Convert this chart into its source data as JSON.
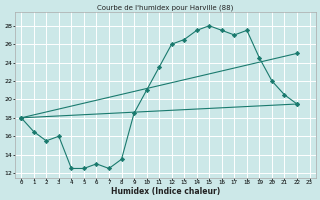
{
  "title": "Courbe de l'humidex pour Harville (88)",
  "xlabel": "Humidex (Indice chaleur)",
  "bg_color": "#cce8e8",
  "grid_color": "#ffffff",
  "line_color": "#1a7a6e",
  "xlim": [
    -0.5,
    23.5
  ],
  "ylim": [
    11.5,
    29.5
  ],
  "xticks": [
    0,
    1,
    2,
    3,
    4,
    5,
    6,
    7,
    8,
    9,
    10,
    11,
    12,
    13,
    14,
    15,
    16,
    17,
    18,
    19,
    20,
    21,
    22,
    23
  ],
  "yticks": [
    12,
    14,
    16,
    18,
    20,
    22,
    24,
    26,
    28
  ],
  "line1_x": [
    0,
    1,
    2,
    3,
    4,
    5,
    6,
    7,
    8,
    9,
    10,
    11,
    12,
    13,
    14,
    15,
    16,
    17,
    18,
    19,
    20,
    21,
    22
  ],
  "line1_y": [
    18,
    16.5,
    15.5,
    16,
    12.5,
    12.5,
    13,
    12.5,
    13.5,
    18.5,
    21,
    23.5,
    26,
    26.5,
    27.5,
    28,
    27.5,
    27,
    27.5,
    24.5,
    22,
    20.5,
    19.5
  ],
  "line2_x": [
    0,
    22
  ],
  "line2_y": [
    18,
    19.5
  ],
  "line3_x": [
    0,
    22
  ],
  "line3_y": [
    18,
    25
  ]
}
